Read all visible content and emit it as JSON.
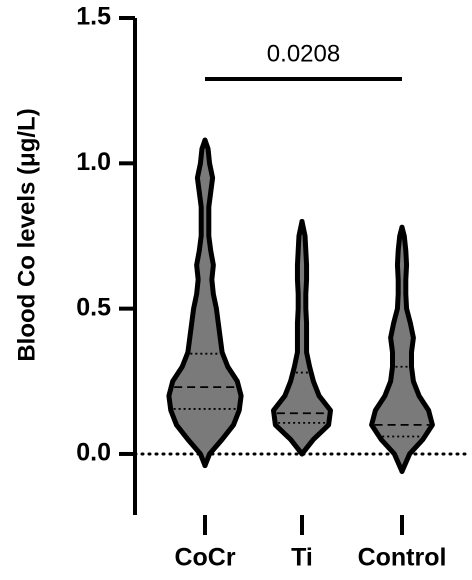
{
  "chart_data": {
    "type": "violin",
    "y_label": "Blood Co levels (μg/L)",
    "categories": [
      "CoCr",
      "Ti",
      "Control"
    ],
    "ylim": [
      -0.21,
      1.5
    ],
    "yticks": [
      {
        "value": 0,
        "label": "0.0"
      },
      {
        "value": 0.5,
        "label": "0.5"
      },
      {
        "value": 1,
        "label": "1.0"
      },
      {
        "value": 1.5,
        "label": "1.5"
      }
    ],
    "reference_line": 0,
    "fill_color": "#7a7a7a",
    "outline_color": "#000000",
    "series": [
      {
        "name": "CoCr",
        "median": 0.23,
        "q1": 0.155,
        "q3": 0.345,
        "density_y": [
          -0.04,
          0,
          0.05,
          0.1,
          0.15,
          0.2,
          0.25,
          0.3,
          0.35,
          0.4,
          0.45,
          0.5,
          0.55,
          0.6,
          0.65,
          0.7,
          0.75,
          0.8,
          0.85,
          0.9,
          0.95,
          1.0,
          1.05,
          1.08
        ],
        "density_width": [
          0,
          0.12,
          0.45,
          0.75,
          0.9,
          0.95,
          0.85,
          0.6,
          0.45,
          0.4,
          0.35,
          0.3,
          0.22,
          0.18,
          0.22,
          0.15,
          0.1,
          0.1,
          0.1,
          0.15,
          0.2,
          0.12,
          0.08,
          0
        ]
      },
      {
        "name": "Ti",
        "median": 0.14,
        "q1": 0.107,
        "q3": 0.28,
        "density_y": [
          0,
          0.05,
          0.1,
          0.15,
          0.2,
          0.25,
          0.3,
          0.35,
          0.4,
          0.45,
          0.5,
          0.55,
          0.6,
          0.65,
          0.7,
          0.75,
          0.8
        ],
        "density_width": [
          0,
          0.3,
          0.7,
          0.75,
          0.45,
          0.3,
          0.2,
          0.12,
          0.12,
          0.12,
          0.1,
          0.1,
          0.12,
          0.12,
          0.1,
          0.08,
          0
        ]
      },
      {
        "name": "Control",
        "median": 0.1,
        "q1": 0.06,
        "q3": 0.3,
        "density_y": [
          -0.06,
          0,
          0.05,
          0.1,
          0.15,
          0.2,
          0.25,
          0.3,
          0.35,
          0.4,
          0.45,
          0.5,
          0.55,
          0.6,
          0.65,
          0.7,
          0.75,
          0.78
        ],
        "density_width": [
          0,
          0.2,
          0.55,
          0.8,
          0.7,
          0.45,
          0.3,
          0.25,
          0.25,
          0.3,
          0.22,
          0.12,
          0.1,
          0.1,
          0.12,
          0.1,
          0.06,
          0
        ]
      }
    ],
    "annotations": [
      {
        "text": "0.0208",
        "from": 0,
        "to": 2,
        "y": 1.29
      }
    ]
  }
}
